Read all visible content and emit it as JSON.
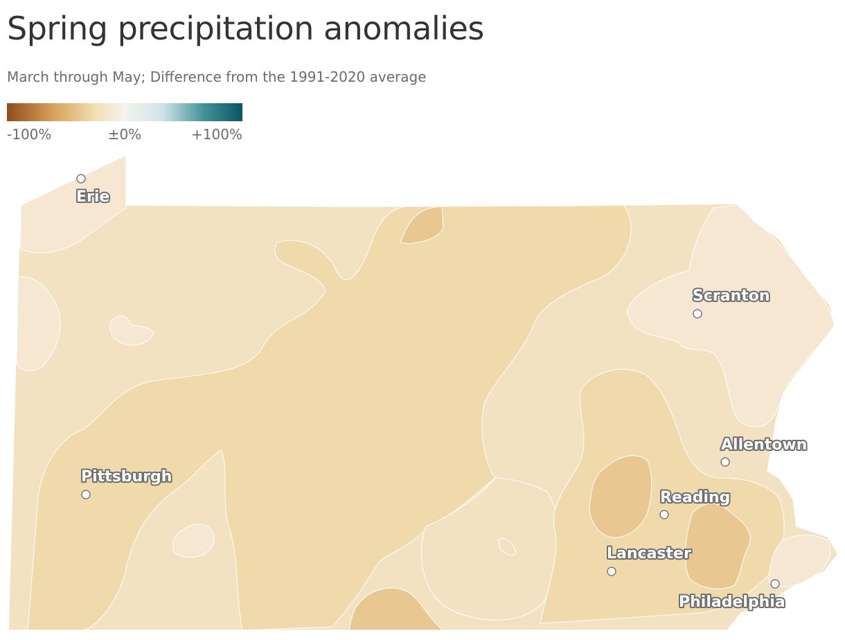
{
  "header": {
    "title": "Spring precipitation anomalies",
    "subtitle": "March through May; Difference from the 1991-2020 average"
  },
  "legend": {
    "min_label": "-100%",
    "mid_label": "±0%",
    "max_label": "+100%",
    "colors": [
      "#8e4d1d",
      "#d9a35a",
      "#f3dfb6",
      "#f5f3ec",
      "#cfe4e6",
      "#3f9196",
      "#0b5566"
    ]
  },
  "map": {
    "region": "Pennsylvania",
    "palette": {
      "very_light": "#f5e7d2",
      "light": "#f3e2c1",
      "medium": "#f0d9ab",
      "dark": "#e9c790",
      "border": "#ffffff"
    },
    "cities": [
      {
        "name": "Erie"
      },
      {
        "name": "Scranton"
      },
      {
        "name": "Allentown"
      },
      {
        "name": "Pittsburgh"
      },
      {
        "name": "Reading"
      },
      {
        "name": "Lancaster"
      },
      {
        "name": "Philadelphia"
      }
    ]
  }
}
